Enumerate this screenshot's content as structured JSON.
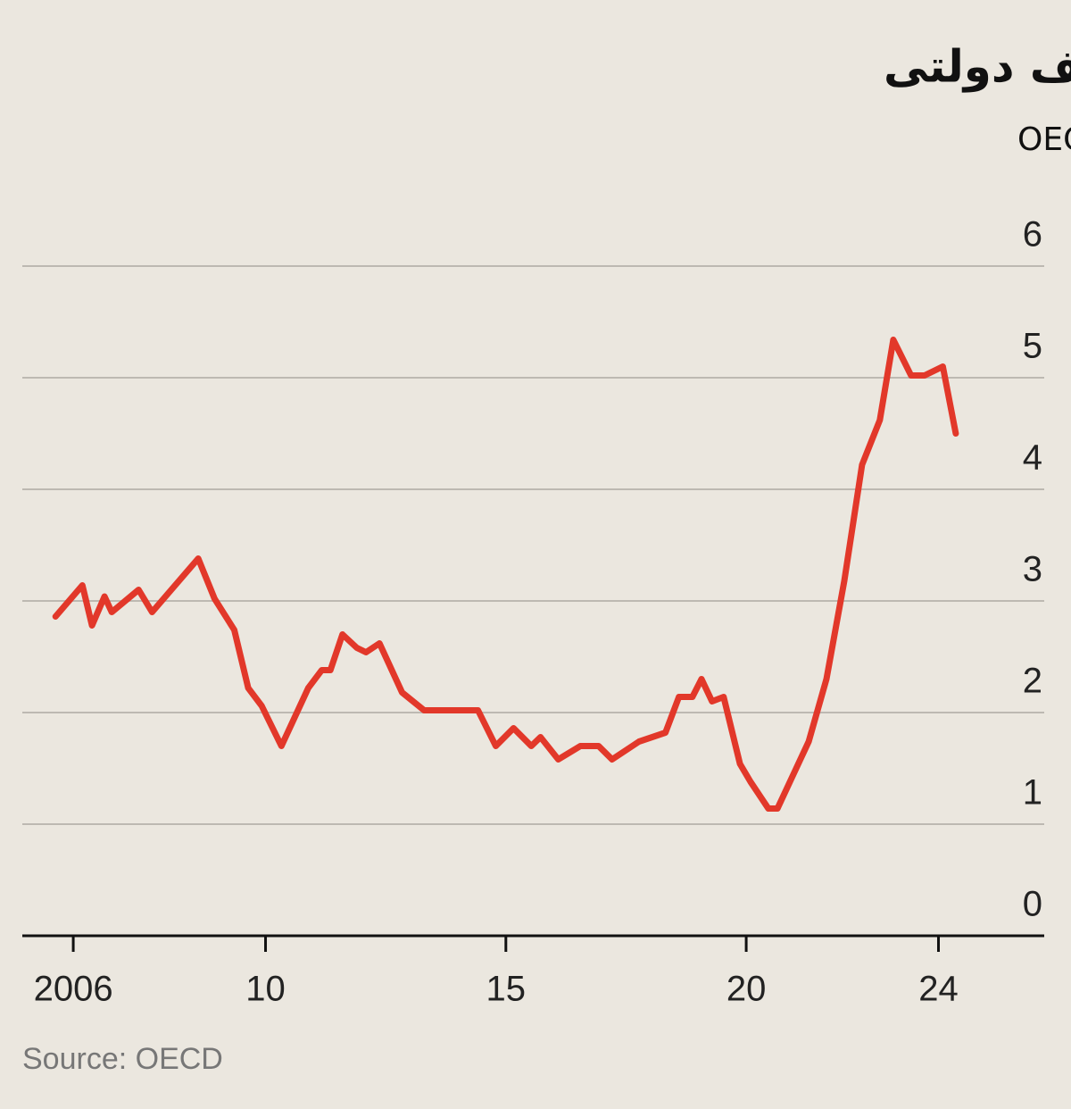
{
  "chart_data": {
    "type": "line",
    "title": "پرواز اجاره بها از سقف دولتی",
    "subtitle": "میانگین رشد سالانه اجاره بها در کشورهای عضو OECD",
    "source": "Source: OECD",
    "grid": true,
    "xlim": [
      2004.94,
      2026.2
    ],
    "xticks": [
      2006,
      {
        "value": 2010,
        "label": "10"
      },
      {
        "value": 2015,
        "label": "15"
      },
      {
        "value": 2020,
        "label": "20"
      },
      {
        "value": 2024,
        "label": "24"
      }
    ],
    "ylim": [
      0,
      6
    ],
    "yticks": [
      0,
      1,
      2,
      3,
      4,
      5,
      6
    ],
    "x": [
      2005.63,
      2006.19,
      2006.39,
      2006.65,
      2006.8,
      2007.36,
      2007.64,
      2008.6,
      2008.94,
      2009.35,
      2009.64,
      2009.92,
      2010.33,
      2010.89,
      2011.17,
      2011.35,
      2011.6,
      2011.9,
      2012.09,
      2012.37,
      2012.84,
      2013.3,
      2013.86,
      2014.42,
      2014.79,
      2015.16,
      2015.53,
      2015.72,
      2016.09,
      2016.55,
      2016.93,
      2017.21,
      2017.77,
      2018.32,
      2018.6,
      2018.88,
      2019.07,
      2019.29,
      2019.53,
      2019.87,
      2020.09,
      2020.46,
      2020.65,
      2021.3,
      2021.67,
      2022.04,
      2022.41,
      2022.78,
      2023.06,
      2023.43,
      2023.71,
      2024.09,
      2024.36
    ],
    "series": [
      {
        "color": "#e2382a",
        "values": [
          2.86,
          3.14,
          2.78,
          3.04,
          2.9,
          3.1,
          2.9,
          3.38,
          3.02,
          2.74,
          2.22,
          2.06,
          1.7,
          2.22,
          2.38,
          2.38,
          2.7,
          2.58,
          2.54,
          2.62,
          2.18,
          2.02,
          2.02,
          2.02,
          1.7,
          1.86,
          1.7,
          1.78,
          1.58,
          1.7,
          1.7,
          1.58,
          1.74,
          1.82,
          2.14,
          2.14,
          2.3,
          2.1,
          2.14,
          1.54,
          1.38,
          1.14,
          1.14,
          1.74,
          2.3,
          3.18,
          4.22,
          4.62,
          5.34,
          5.02,
          5.02,
          5.1,
          4.5
        ]
      }
    ]
  }
}
